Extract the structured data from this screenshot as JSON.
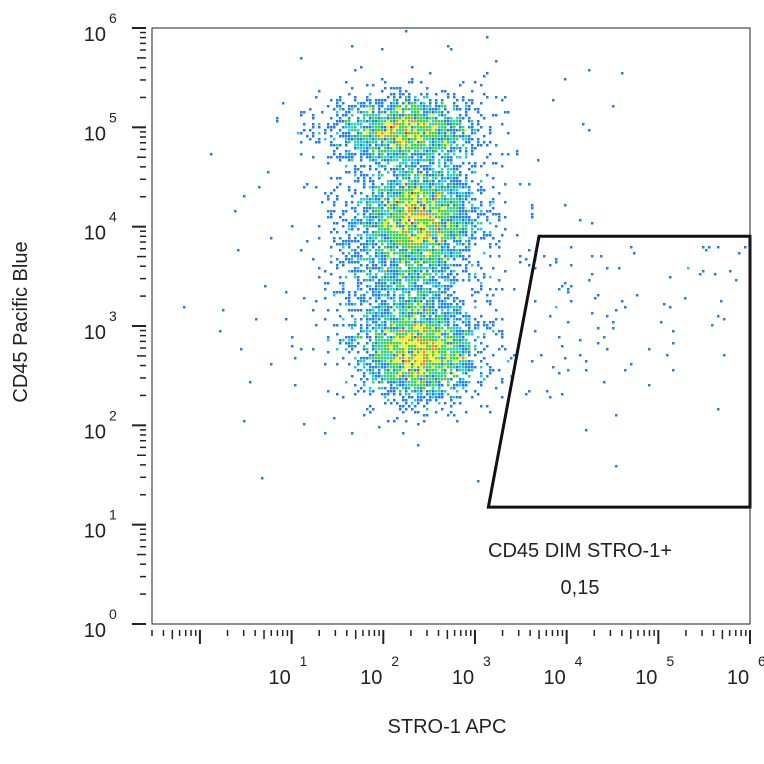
{
  "chart_data": {
    "type": "scatter",
    "subtype": "flow-cytometry-density-dot-plot",
    "xlabel": "STRO-1 APC",
    "ylabel": "CD45 Pacific Blue",
    "x_scale": "log",
    "y_scale": "log",
    "xlim": [
      0.3,
      1000000
    ],
    "ylim": [
      1,
      1000000
    ],
    "x_ticks": [
      {
        "base": "10",
        "exp": "1",
        "value": 10
      },
      {
        "base": "10",
        "exp": "2",
        "value": 100
      },
      {
        "base": "10",
        "exp": "3",
        "value": 1000
      },
      {
        "base": "10",
        "exp": "4",
        "value": 10000
      },
      {
        "base": "10",
        "exp": "5",
        "value": 100000
      },
      {
        "base": "10",
        "exp": "6",
        "value": 1000000
      }
    ],
    "y_ticks": [
      {
        "base": "10",
        "exp": "0",
        "value": 1
      },
      {
        "base": "10",
        "exp": "1",
        "value": 10
      },
      {
        "base": "10",
        "exp": "2",
        "value": 100
      },
      {
        "base": "10",
        "exp": "3",
        "value": 1000
      },
      {
        "base": "10",
        "exp": "4",
        "value": 10000
      },
      {
        "base": "10",
        "exp": "5",
        "value": 100000
      },
      {
        "base": "10",
        "exp": "6",
        "value": 1000000
      }
    ],
    "color_scale": [
      "#0b12c8",
      "#1f7bf0",
      "#20d0d0",
      "#36d43c",
      "#f5f000",
      "#ff8a00",
      "#ee1a1a"
    ],
    "populations": [
      {
        "x": 250,
        "y": 13000,
        "spread_x": 0.33,
        "spread_y": 0.26,
        "weight": 2600
      },
      {
        "x": 180,
        "y": 90000,
        "spread_x": 0.38,
        "spread_y": 0.18,
        "weight": 2000
      },
      {
        "x": 250,
        "y": 550,
        "spread_x": 0.32,
        "spread_y": 0.24,
        "weight": 2700
      },
      {
        "x": 180,
        "y": 3000,
        "spread_x": 0.36,
        "spread_y": 0.35,
        "weight": 1300
      }
    ],
    "gate": {
      "name": "CD45 DIM STRO-1+",
      "value": "0,15",
      "vertices": [
        [
          1400,
          15
        ],
        [
          5000,
          8000
        ],
        [
          1000000,
          8000
        ],
        [
          1000000,
          15
        ]
      ]
    }
  }
}
